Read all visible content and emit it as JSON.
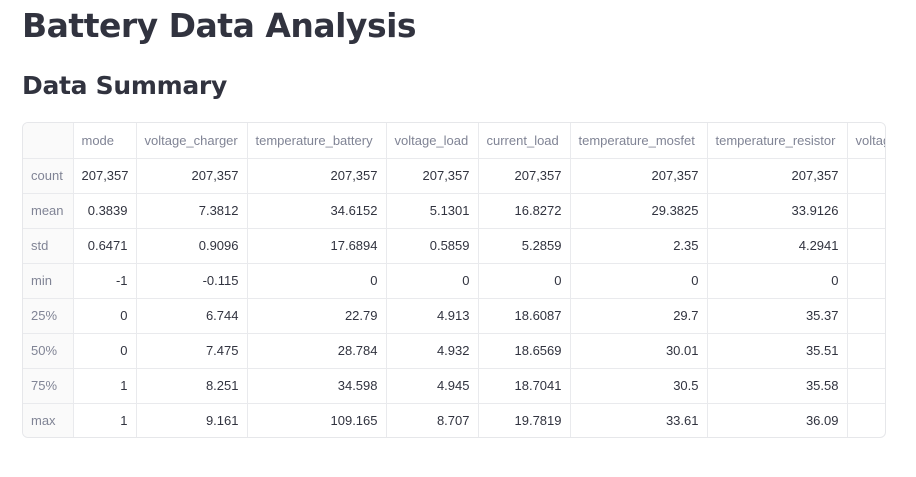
{
  "page": {
    "title": "Battery Data Analysis",
    "subtitle": "Data Summary"
  },
  "table": {
    "columns": [
      "mode",
      "voltage_charger",
      "temperature_battery",
      "voltage_load",
      "current_load",
      "temperature_mosfet",
      "temperature_resistor",
      "voltage_"
    ],
    "rows": [
      {
        "label": "count",
        "values": [
          "207,357",
          "207,357",
          "207,357",
          "207,357",
          "207,357",
          "207,357",
          "207,357",
          ""
        ]
      },
      {
        "label": "mean",
        "values": [
          "0.3839",
          "7.3812",
          "34.6152",
          "5.1301",
          "16.8272",
          "29.3825",
          "33.9126",
          ""
        ]
      },
      {
        "label": "std",
        "values": [
          "0.6471",
          "0.9096",
          "17.6894",
          "0.5859",
          "5.2859",
          "2.35",
          "4.2941",
          ""
        ]
      },
      {
        "label": "min",
        "values": [
          "-1",
          "-0.115",
          "0",
          "0",
          "0",
          "0",
          "0",
          ""
        ]
      },
      {
        "label": "25%",
        "values": [
          "0",
          "6.744",
          "22.79",
          "4.913",
          "18.6087",
          "29.7",
          "35.37",
          ""
        ]
      },
      {
        "label": "50%",
        "values": [
          "0",
          "7.475",
          "28.784",
          "4.932",
          "18.6569",
          "30.01",
          "35.51",
          ""
        ]
      },
      {
        "label": "75%",
        "values": [
          "1",
          "8.251",
          "34.598",
          "4.945",
          "18.7041",
          "30.5",
          "35.58",
          ""
        ]
      },
      {
        "label": "max",
        "values": [
          "1",
          "9.161",
          "109.165",
          "8.707",
          "19.7819",
          "33.61",
          "36.09",
          ""
        ]
      }
    ]
  }
}
